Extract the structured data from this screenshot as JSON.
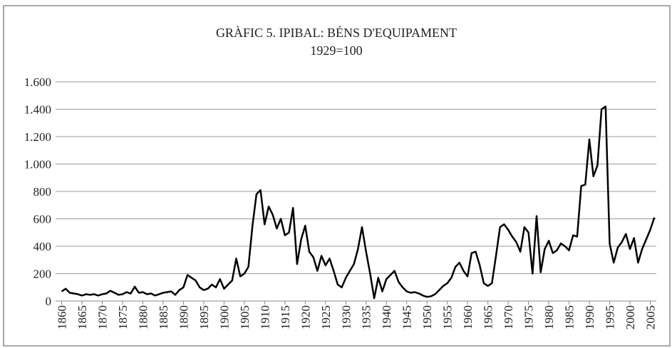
{
  "chart_data": {
    "type": "line",
    "title": "GRÀFIC 5. IPIBAL: BÉNS D'EQUIPAMENT",
    "subtitle": "1929=100",
    "x": [
      1860,
      1861,
      1862,
      1863,
      1864,
      1865,
      1866,
      1867,
      1868,
      1869,
      1870,
      1871,
      1872,
      1873,
      1874,
      1875,
      1876,
      1877,
      1878,
      1879,
      1880,
      1881,
      1882,
      1883,
      1884,
      1885,
      1886,
      1887,
      1888,
      1889,
      1890,
      1891,
      1892,
      1893,
      1894,
      1895,
      1896,
      1897,
      1898,
      1899,
      1900,
      1901,
      1902,
      1903,
      1904,
      1905,
      1906,
      1907,
      1908,
      1909,
      1910,
      1911,
      1912,
      1913,
      1914,
      1915,
      1916,
      1917,
      1918,
      1919,
      1920,
      1921,
      1922,
      1923,
      1924,
      1925,
      1926,
      1927,
      1928,
      1929,
      1930,
      1931,
      1932,
      1933,
      1934,
      1935,
      1936,
      1937,
      1938,
      1939,
      1940,
      1941,
      1942,
      1943,
      1944,
      1945,
      1946,
      1947,
      1948,
      1949,
      1950,
      1951,
      1952,
      1953,
      1954,
      1955,
      1956,
      1957,
      1958,
      1959,
      1960,
      1961,
      1962,
      1963,
      1964,
      1965,
      1966,
      1967,
      1968,
      1969,
      1970,
      1971,
      1972,
      1973,
      1974,
      1975,
      1976,
      1977,
      1978,
      1979,
      1980,
      1981,
      1982,
      1983,
      1984,
      1985,
      1986,
      1987,
      1988,
      1989,
      1990,
      1991,
      1992,
      1993,
      1994,
      1995,
      1996,
      1997,
      1998,
      1999,
      2000,
      2001,
      2002,
      2003,
      2004,
      2005,
      2006
    ],
    "values": [
      70,
      90,
      60,
      55,
      50,
      40,
      50,
      45,
      50,
      40,
      50,
      55,
      75,
      60,
      45,
      50,
      65,
      55,
      105,
      60,
      65,
      50,
      55,
      40,
      50,
      60,
      65,
      70,
      45,
      80,
      100,
      190,
      170,
      150,
      100,
      80,
      90,
      120,
      100,
      160,
      90,
      120,
      150,
      310,
      180,
      200,
      250,
      550,
      780,
      810,
      560,
      690,
      630,
      530,
      600,
      480,
      500,
      680,
      270,
      450,
      550,
      360,
      320,
      220,
      330,
      260,
      310,
      220,
      120,
      100,
      170,
      220,
      270,
      380,
      540,
      360,
      200,
      20,
      170,
      70,
      160,
      190,
      220,
      140,
      100,
      70,
      60,
      65,
      55,
      40,
      30,
      35,
      50,
      80,
      110,
      130,
      170,
      250,
      280,
      220,
      180,
      350,
      360,
      260,
      130,
      110,
      130,
      330,
      540,
      560,
      520,
      470,
      430,
      360,
      540,
      500,
      200,
      620,
      210,
      380,
      440,
      350,
      370,
      420,
      400,
      370,
      480,
      470,
      840,
      850,
      1180,
      910,
      990,
      1400,
      1420,
      420,
      280,
      390,
      430,
      490,
      380,
      460,
      280,
      380,
      450,
      520,
      610
    ],
    "color": "#000000",
    "xlim": [
      1858.5,
      2006.5
    ],
    "xticks": [
      1860,
      1865,
      1870,
      1875,
      1880,
      1885,
      1890,
      1895,
      1900,
      1905,
      1910,
      1915,
      1920,
      1925,
      1930,
      1935,
      1940,
      1945,
      1950,
      1955,
      1960,
      1965,
      1970,
      1975,
      1980,
      1985,
      1990,
      1995,
      2000,
      2005
    ],
    "ylim": [
      0,
      1600
    ],
    "yticks": [
      0,
      200,
      400,
      600,
      800,
      {
        "value": 1000,
        "label": "1.000"
      },
      {
        "value": 1200,
        "label": "1.200"
      },
      {
        "value": 1400,
        "label": "1.400"
      },
      {
        "value": 1600,
        "label": "1.600"
      }
    ],
    "grid": true
  }
}
